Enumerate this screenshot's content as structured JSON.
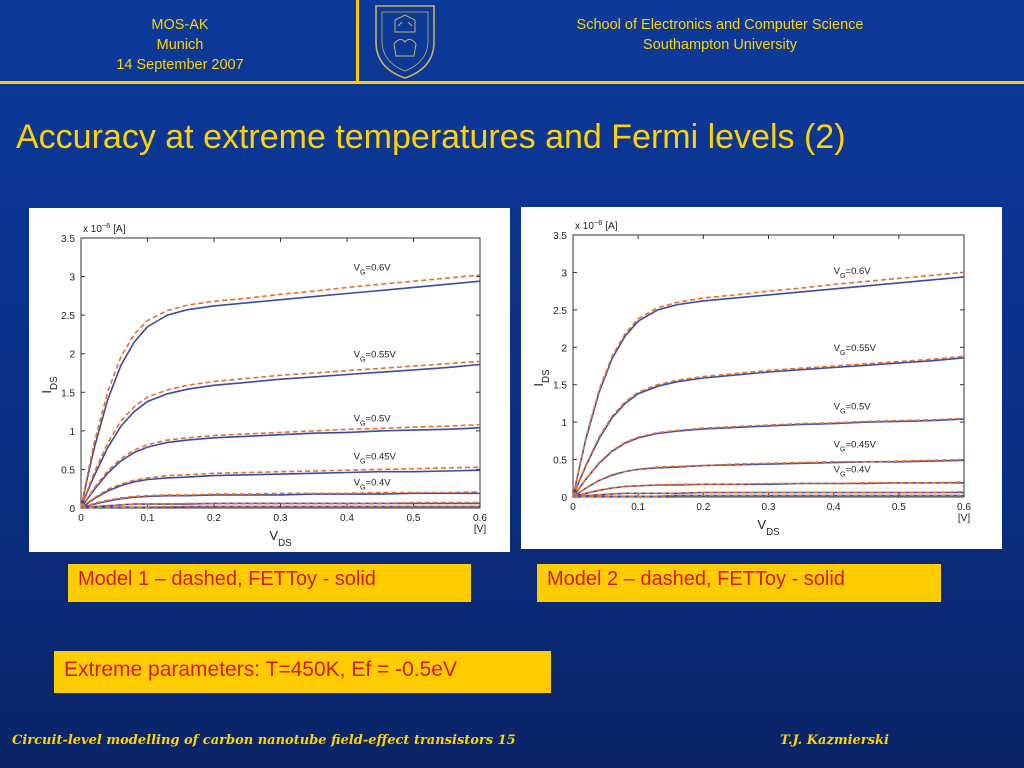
{
  "header": {
    "conf_line1": "MOS-AK",
    "conf_line2": "Munich",
    "conf_line3": "14 September 2007",
    "school_line1": "School of Electronics and Computer Science",
    "school_line2": "Southampton University"
  },
  "colors": {
    "background": "#0a2f86",
    "accent": "#ffcc00",
    "title_text": "#ffd200",
    "caption_text": "#d21a1a",
    "solid_curve": "#3a4aa8",
    "dashed_curve": "#e8702a"
  },
  "title": "Accuracy at extreme temperatures and Fermi levels (2)",
  "captions": {
    "left": "Model 1 – dashed, FETToy - solid",
    "right": "Model 2 – dashed, FETToy - solid",
    "params": "Extreme parameters: T=450K, Ef = -0.5eV"
  },
  "footer": {
    "left": "Circuit-level modelling of carbon nanotube field-effect transistors  15",
    "right": "T.J. Kazmierski"
  },
  "chart_data": [
    {
      "type": "line",
      "ylabel_main": "I",
      "ylabel_sub": "DS",
      "y_multiplier": "x 10",
      "y_multiplier_exp": "−6",
      "y_unit": "[A]",
      "xlabel_main": "V",
      "xlabel_sub": "DS",
      "x_unit": "[V]",
      "xlim": [
        0,
        0.6
      ],
      "ylim": [
        0,
        3.5
      ],
      "x_ticks": [
        "0",
        "0.1",
        "0.2",
        "0.3",
        "0.4",
        "0.5",
        "0.6"
      ],
      "y_ticks": [
        "0",
        "0.5",
        "1",
        "1.5",
        "2",
        "2.5",
        "3",
        "3.5"
      ],
      "x": [
        0,
        0.01,
        0.02,
        0.04,
        0.06,
        0.08,
        0.1,
        0.13,
        0.16,
        0.2,
        0.25,
        0.3,
        0.35,
        0.4,
        0.45,
        0.5,
        0.55,
        0.6
      ],
      "curves": [
        {
          "label_main": "V",
          "label_sub": "G",
          "label_rest": "=0.6V",
          "solid": [
            0,
            0.4,
            0.78,
            1.4,
            1.85,
            2.15,
            2.35,
            2.5,
            2.57,
            2.62,
            2.66,
            2.7,
            2.74,
            2.78,
            2.82,
            2.86,
            2.9,
            2.94
          ],
          "dashed": [
            0,
            0.44,
            0.85,
            1.5,
            1.96,
            2.25,
            2.43,
            2.56,
            2.63,
            2.68,
            2.72,
            2.77,
            2.81,
            2.86,
            2.9,
            2.94,
            2.98,
            3.02
          ]
        },
        {
          "label_main": "V",
          "label_sub": "G",
          "label_rest": "=0.55V",
          "solid": [
            0,
            0.22,
            0.42,
            0.78,
            1.06,
            1.25,
            1.38,
            1.48,
            1.54,
            1.59,
            1.63,
            1.67,
            1.7,
            1.73,
            1.76,
            1.79,
            1.82,
            1.86
          ],
          "dashed": [
            0,
            0.24,
            0.46,
            0.84,
            1.13,
            1.31,
            1.44,
            1.53,
            1.59,
            1.64,
            1.68,
            1.72,
            1.75,
            1.78,
            1.81,
            1.84,
            1.87,
            1.9
          ]
        },
        {
          "label_main": "V",
          "label_sub": "G",
          "label_rest": "=0.5V",
          "solid": [
            0,
            0.12,
            0.24,
            0.45,
            0.61,
            0.72,
            0.79,
            0.85,
            0.88,
            0.91,
            0.93,
            0.95,
            0.97,
            0.98,
            1.0,
            1.01,
            1.02,
            1.04
          ],
          "dashed": [
            0,
            0.13,
            0.26,
            0.48,
            0.64,
            0.75,
            0.82,
            0.88,
            0.91,
            0.94,
            0.96,
            0.98,
            1.0,
            1.02,
            1.03,
            1.05,
            1.06,
            1.08
          ]
        },
        {
          "label_main": "V",
          "label_sub": "G",
          "label_rest": "=0.45V",
          "solid": [
            0,
            0.06,
            0.12,
            0.22,
            0.29,
            0.34,
            0.37,
            0.39,
            0.4,
            0.42,
            0.43,
            0.44,
            0.45,
            0.46,
            0.47,
            0.47,
            0.48,
            0.49
          ],
          "dashed": [
            0,
            0.07,
            0.13,
            0.24,
            0.31,
            0.36,
            0.39,
            0.42,
            0.43,
            0.45,
            0.46,
            0.47,
            0.48,
            0.49,
            0.5,
            0.51,
            0.52,
            0.53
          ]
        },
        {
          "label_main": "V",
          "label_sub": "G",
          "label_rest": "=0.4V",
          "solid": [
            0,
            0.03,
            0.05,
            0.09,
            0.12,
            0.14,
            0.15,
            0.16,
            0.16,
            0.17,
            0.17,
            0.17,
            0.18,
            0.18,
            0.18,
            0.19,
            0.19,
            0.19
          ],
          "dashed": [
            0,
            0.03,
            0.06,
            0.1,
            0.13,
            0.15,
            0.16,
            0.17,
            0.17,
            0.18,
            0.18,
            0.19,
            0.19,
            0.19,
            0.2,
            0.2,
            0.2,
            0.21
          ]
        },
        {
          "solid": [
            0,
            0.01,
            0.02,
            0.03,
            0.04,
            0.05,
            0.05,
            0.05,
            0.05,
            0.06,
            0.06,
            0.06,
            0.06,
            0.06,
            0.06,
            0.06,
            0.06,
            0.06
          ],
          "dashed": [
            0,
            0.01,
            0.02,
            0.03,
            0.04,
            0.05,
            0.05,
            0.05,
            0.06,
            0.06,
            0.06,
            0.06,
            0.06,
            0.06,
            0.06,
            0.07,
            0.07,
            0.07
          ]
        },
        {
          "solid": [
            0,
            0.0,
            0.01,
            0.01,
            0.01,
            0.01,
            0.01,
            0.01,
            0.02,
            0.02,
            0.02,
            0.02,
            0.02,
            0.02,
            0.02,
            0.02,
            0.02,
            0.02
          ],
          "dashed": [
            0,
            0.0,
            0.01,
            0.01,
            0.01,
            0.01,
            0.01,
            0.02,
            0.02,
            0.02,
            0.02,
            0.02,
            0.02,
            0.02,
            0.02,
            0.02,
            0.02,
            0.02
          ]
        }
      ]
    },
    {
      "type": "line",
      "ylabel_main": "I",
      "ylabel_sub": "DS",
      "y_multiplier": "x 10",
      "y_multiplier_exp": "−6",
      "y_unit": "[A]",
      "xlabel_main": "V",
      "xlabel_sub": "DS",
      "x_unit": "[V]",
      "xlim": [
        0,
        0.6
      ],
      "ylim": [
        0,
        3.5
      ],
      "x_ticks": [
        "0",
        "0.1",
        "0.2",
        "0.3",
        "0.4",
        "0.5",
        "0.6"
      ],
      "y_ticks": [
        "0",
        "0.5",
        "1",
        "1.5",
        "2",
        "2.5",
        "3",
        "3.5"
      ],
      "x": [
        0,
        0.01,
        0.02,
        0.04,
        0.06,
        0.08,
        0.1,
        0.13,
        0.16,
        0.2,
        0.25,
        0.3,
        0.35,
        0.4,
        0.45,
        0.5,
        0.55,
        0.6
      ],
      "curves": [
        {
          "label_main": "V",
          "label_sub": "G",
          "label_rest": "=0.6V",
          "solid": [
            0,
            0.4,
            0.78,
            1.4,
            1.85,
            2.15,
            2.35,
            2.5,
            2.57,
            2.62,
            2.66,
            2.7,
            2.74,
            2.78,
            2.82,
            2.86,
            2.9,
            2.94
          ],
          "dashed": [
            0,
            0.41,
            0.8,
            1.43,
            1.88,
            2.18,
            2.38,
            2.53,
            2.6,
            2.66,
            2.7,
            2.75,
            2.79,
            2.84,
            2.88,
            2.92,
            2.96,
            3.0
          ]
        },
        {
          "label_main": "V",
          "label_sub": "G",
          "label_rest": "=0.55V",
          "solid": [
            0,
            0.22,
            0.42,
            0.78,
            1.06,
            1.25,
            1.38,
            1.48,
            1.54,
            1.59,
            1.63,
            1.67,
            1.7,
            1.73,
            1.76,
            1.79,
            1.82,
            1.86
          ],
          "dashed": [
            0,
            0.23,
            0.43,
            0.8,
            1.08,
            1.27,
            1.4,
            1.5,
            1.56,
            1.61,
            1.65,
            1.69,
            1.72,
            1.75,
            1.78,
            1.81,
            1.84,
            1.88
          ]
        },
        {
          "label_main": "V",
          "label_sub": "G",
          "label_rest": "=0.5V",
          "solid": [
            0,
            0.12,
            0.24,
            0.45,
            0.61,
            0.72,
            0.79,
            0.85,
            0.88,
            0.91,
            0.93,
            0.95,
            0.97,
            0.98,
            1.0,
            1.01,
            1.02,
            1.04
          ],
          "dashed": [
            0,
            0.12,
            0.24,
            0.46,
            0.62,
            0.73,
            0.8,
            0.86,
            0.89,
            0.92,
            0.94,
            0.96,
            0.98,
            0.99,
            1.01,
            1.02,
            1.03,
            1.05
          ]
        },
        {
          "label_main": "V",
          "label_sub": "G",
          "label_rest": "=0.45V",
          "solid": [
            0,
            0.06,
            0.12,
            0.22,
            0.29,
            0.34,
            0.37,
            0.39,
            0.4,
            0.42,
            0.43,
            0.44,
            0.45,
            0.46,
            0.47,
            0.47,
            0.48,
            0.49
          ],
          "dashed": [
            0,
            0.06,
            0.12,
            0.22,
            0.3,
            0.34,
            0.37,
            0.4,
            0.41,
            0.42,
            0.44,
            0.45,
            0.46,
            0.47,
            0.47,
            0.48,
            0.49,
            0.5
          ]
        },
        {
          "label_main": "V",
          "label_sub": "G",
          "label_rest": "=0.4V",
          "solid": [
            0,
            0.03,
            0.05,
            0.09,
            0.12,
            0.14,
            0.15,
            0.16,
            0.16,
            0.17,
            0.17,
            0.17,
            0.18,
            0.18,
            0.18,
            0.19,
            0.19,
            0.19
          ],
          "dashed": [
            0,
            0.03,
            0.05,
            0.09,
            0.12,
            0.14,
            0.15,
            0.16,
            0.17,
            0.17,
            0.17,
            0.18,
            0.18,
            0.18,
            0.19,
            0.19,
            0.19,
            0.2
          ]
        },
        {
          "solid": [
            0,
            0.01,
            0.02,
            0.03,
            0.04,
            0.05,
            0.05,
            0.05,
            0.05,
            0.06,
            0.06,
            0.06,
            0.06,
            0.06,
            0.06,
            0.06,
            0.06,
            0.06
          ],
          "dashed": [
            0,
            0.01,
            0.02,
            0.03,
            0.04,
            0.05,
            0.05,
            0.05,
            0.05,
            0.06,
            0.06,
            0.06,
            0.06,
            0.06,
            0.06,
            0.06,
            0.06,
            0.07
          ]
        },
        {
          "solid": [
            0,
            0.0,
            0.01,
            0.01,
            0.01,
            0.01,
            0.01,
            0.01,
            0.02,
            0.02,
            0.02,
            0.02,
            0.02,
            0.02,
            0.02,
            0.02,
            0.02,
            0.02
          ],
          "dashed": [
            0,
            0.0,
            0.01,
            0.01,
            0.01,
            0.01,
            0.01,
            0.01,
            0.02,
            0.02,
            0.02,
            0.02,
            0.02,
            0.02,
            0.02,
            0.02,
            0.02,
            0.02
          ]
        }
      ]
    }
  ]
}
